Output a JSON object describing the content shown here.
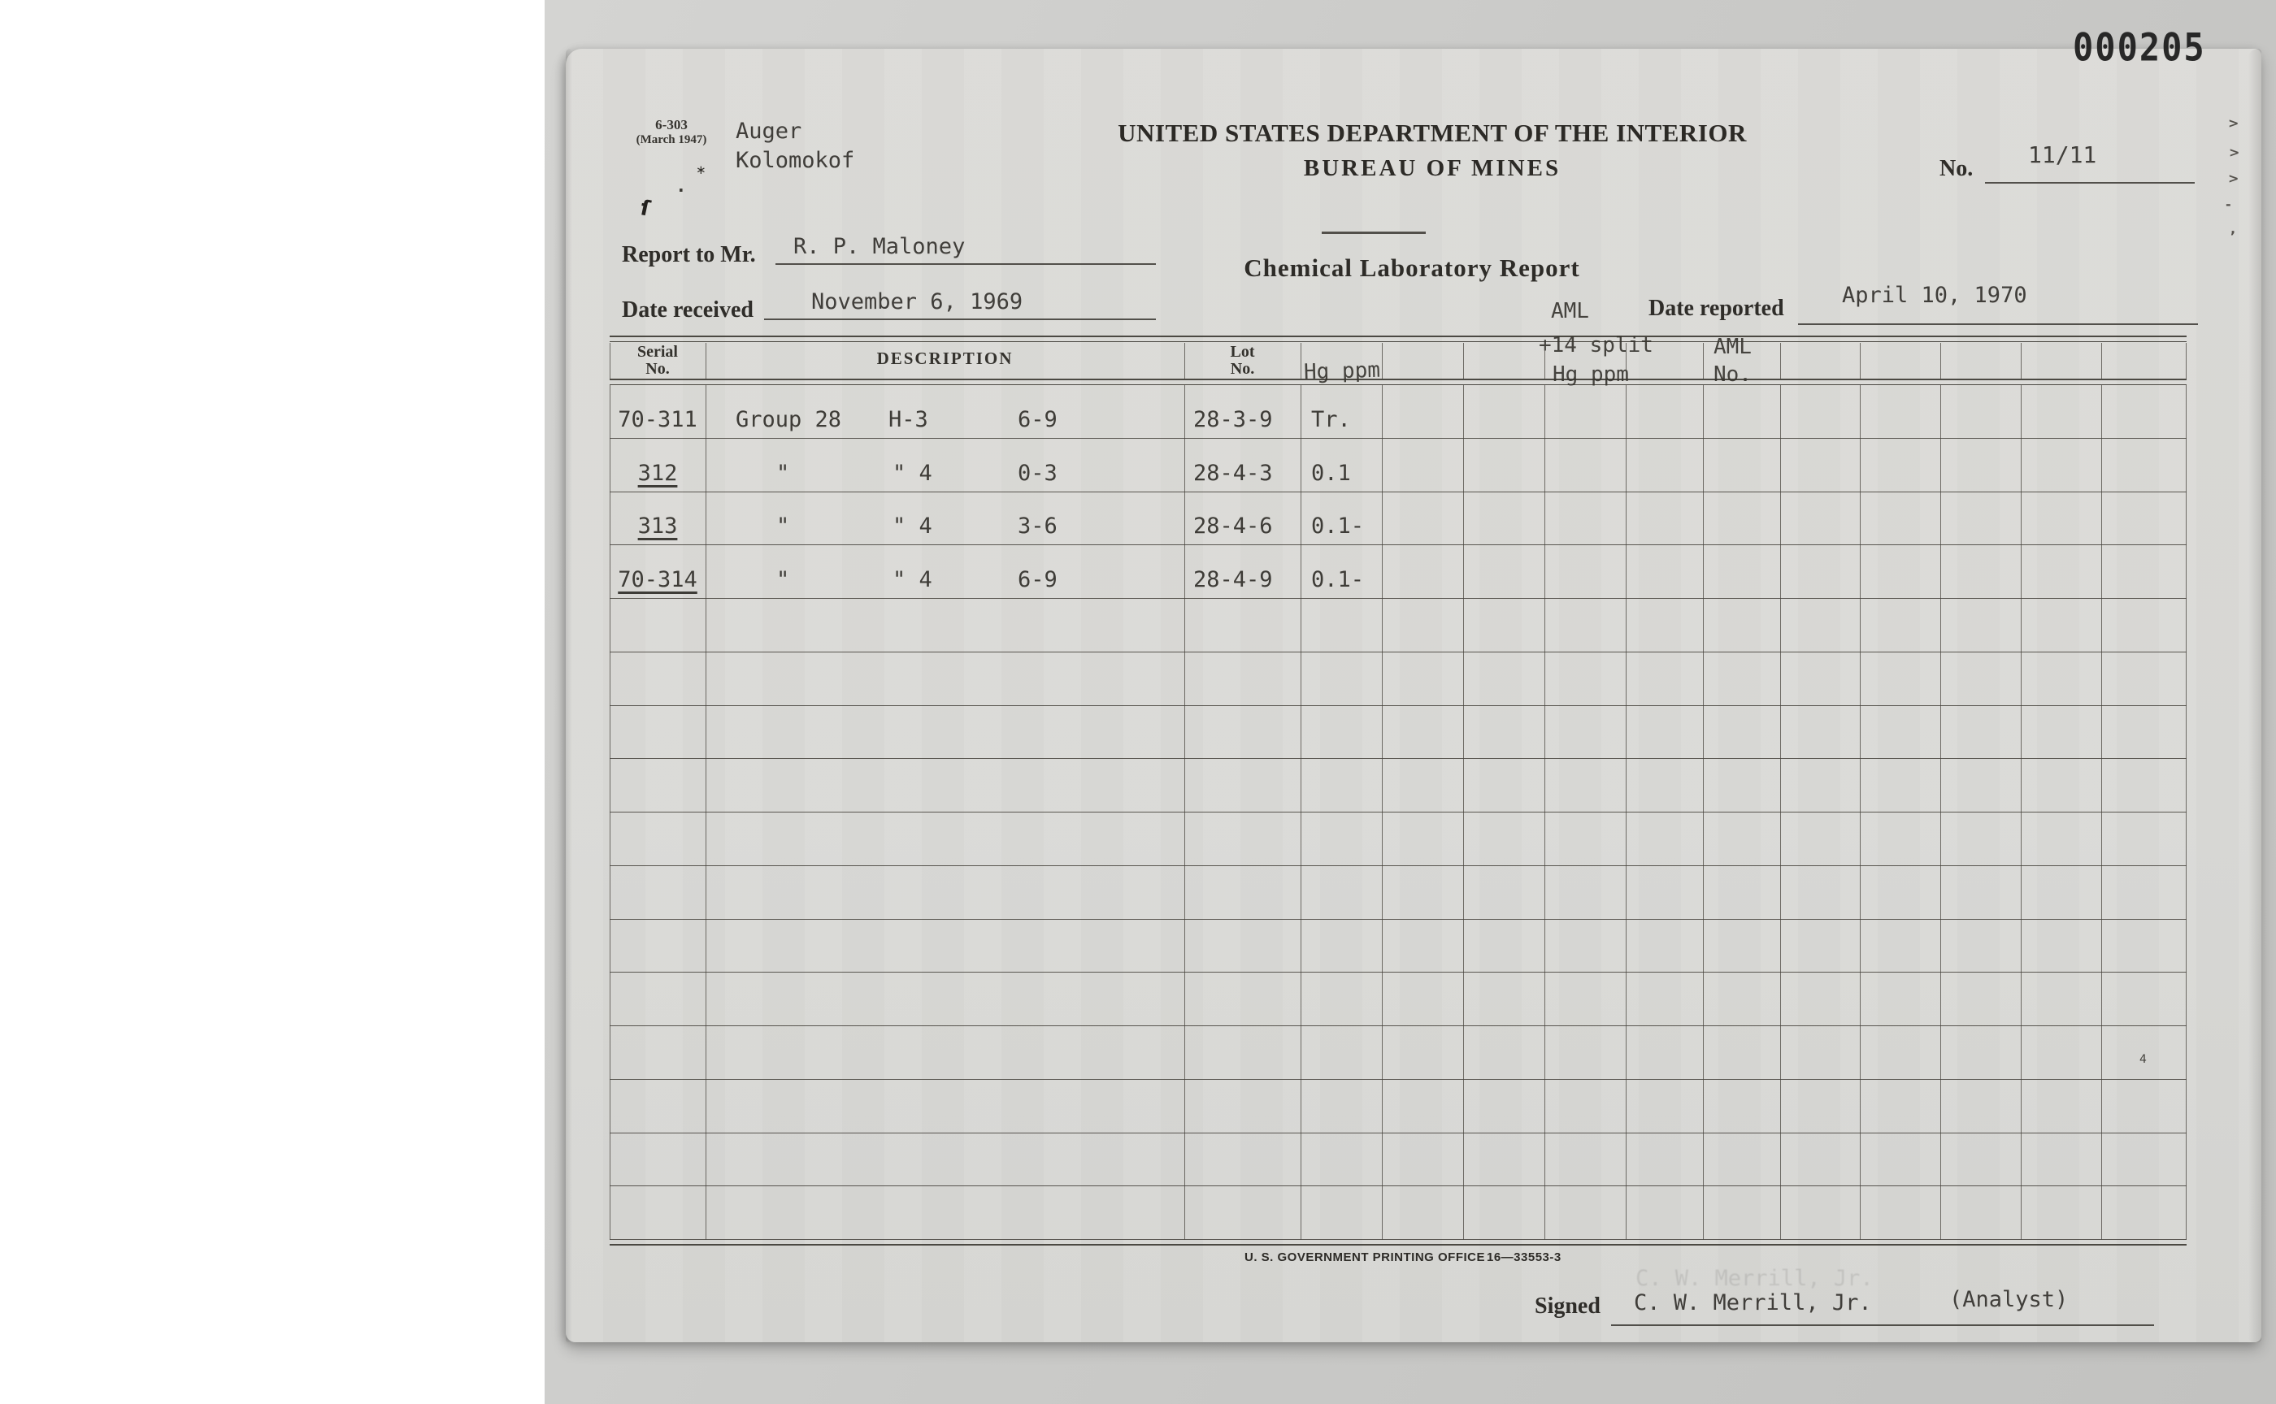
{
  "colors": {
    "paper": "#dadad7",
    "backdrop": "#c9c9c7",
    "printed_ink": "#2f2d29",
    "typed_ink": "#403e3a",
    "grid_line": "#46423c"
  },
  "stamp": {
    "number": "000205"
  },
  "header": {
    "form_number": "6-303",
    "form_date": "(March 1947)",
    "typed_line1": "Auger",
    "typed_line2": "Kolomokof",
    "dept_line1": "UNITED STATES DEPARTMENT OF THE INTERIOR",
    "dept_line2": "BUREAU OF MINES",
    "no_label": "No.",
    "no_value": "11/11",
    "report_title": "Chemical Laboratory Report",
    "report_to_label": "Report to Mr.",
    "report_to_value": "R. P. Maloney",
    "date_received_label": "Date received",
    "date_received_value": "November 6, 1969",
    "date_reported_label": "Date reported",
    "date_reported_value": "April 10, 1970"
  },
  "annotations": {
    "aml_split_line1": "AML",
    "aml_split_line2": "+14 split",
    "aml_split_line3": "Hg ppm",
    "aml_no_line1": "AML",
    "aml_no_line2": "No.",
    "hg_ppm": "Hg ppm"
  },
  "table": {
    "header_serial_line1": "Serial",
    "header_serial_line2": "No.",
    "header_description": "DESCRIPTION",
    "header_lot_line1": "Lot",
    "header_lot_line2": "No.",
    "empty_row_count": 12,
    "rows": [
      {
        "serial": "70-311",
        "underlined": false,
        "continuation": false,
        "desc_group": "Group 28",
        "desc_hole": "H-3",
        "desc_depth": "6-9",
        "lot": "28-3-9",
        "hg_ppm": "Tr."
      },
      {
        "serial": "312",
        "underlined": true,
        "continuation": true,
        "desc_group": "\"",
        "desc_hole": "\" 4",
        "desc_depth": "0-3",
        "lot": "28-4-3",
        "hg_ppm": "0.1"
      },
      {
        "serial": "313",
        "underlined": true,
        "continuation": true,
        "desc_group": "\"",
        "desc_hole": "\" 4",
        "desc_depth": "3-6",
        "lot": "28-4-6",
        "hg_ppm": "0.1-"
      },
      {
        "serial": "70-314",
        "underlined": true,
        "continuation": true,
        "desc_group": "\"",
        "desc_hole": "\" 4",
        "desc_depth": "6-9",
        "lot": "28-4-9",
        "hg_ppm": "0.1-"
      }
    ]
  },
  "footer": {
    "printing_office": "U. S. GOVERNMENT PRINTING OFFICE",
    "print_code": "16—33553-3",
    "signed_label": "Signed",
    "signed_name": "C. W. Merrill, Jr.",
    "signed_role": "(Analyst)"
  },
  "artifacts": {
    "edge_marks": [
      ">",
      ">",
      ">",
      "-",
      ","
    ],
    "table_mark": "4",
    "ink_marks": [
      "∗",
      "·",
      "ſ"
    ]
  }
}
